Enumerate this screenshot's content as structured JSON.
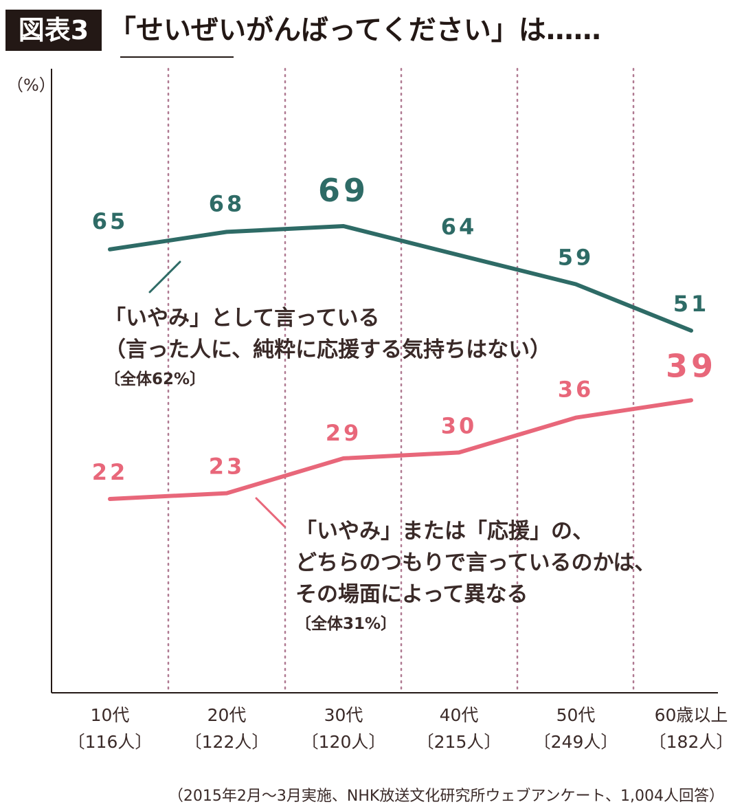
{
  "title": {
    "badge": "図表3",
    "text": "「せいぜいがんばってください」は……"
  },
  "unit_label": "（%）",
  "annotations": {
    "teal": {
      "line1": "「いやみ」として言っている",
      "line2": "（言った人に、純粋に応援する気持ちはない）",
      "total": "〔全体62%〕"
    },
    "pink": {
      "line1": "「いやみ」または「応援」の、",
      "line2": "どちらのつもりで言っているのかは、",
      "line3": "その場面によって異なる",
      "total": "〔全体31%〕"
    }
  },
  "source_note": "（2015年2月〜3月実施、NHK放送文化研究所ウェブアンケート、1,004人回答）",
  "chart_data": {
    "type": "line",
    "categories": [
      "10代",
      "20代",
      "30代",
      "40代",
      "50代",
      "60歳以上"
    ],
    "category_counts": [
      "〔116人〕",
      "〔122人〕",
      "〔120人〕",
      "〔215人〕",
      "〔249人〕",
      "〔182人〕"
    ],
    "series": [
      {
        "values": [
          65,
          68,
          69,
          64,
          59,
          51
        ],
        "color": "#2e6b66",
        "highlight_index": 2
      },
      {
        "values": [
          22,
          23,
          29,
          30,
          36,
          39
        ],
        "color": "#e8677a",
        "highlight_index": 5
      }
    ],
    "ylabel": "（%）",
    "ylim": [
      0,
      100
    ],
    "grid": "vertical-dotted",
    "grid_color": "#b07a92",
    "axis_color": "#231815"
  }
}
